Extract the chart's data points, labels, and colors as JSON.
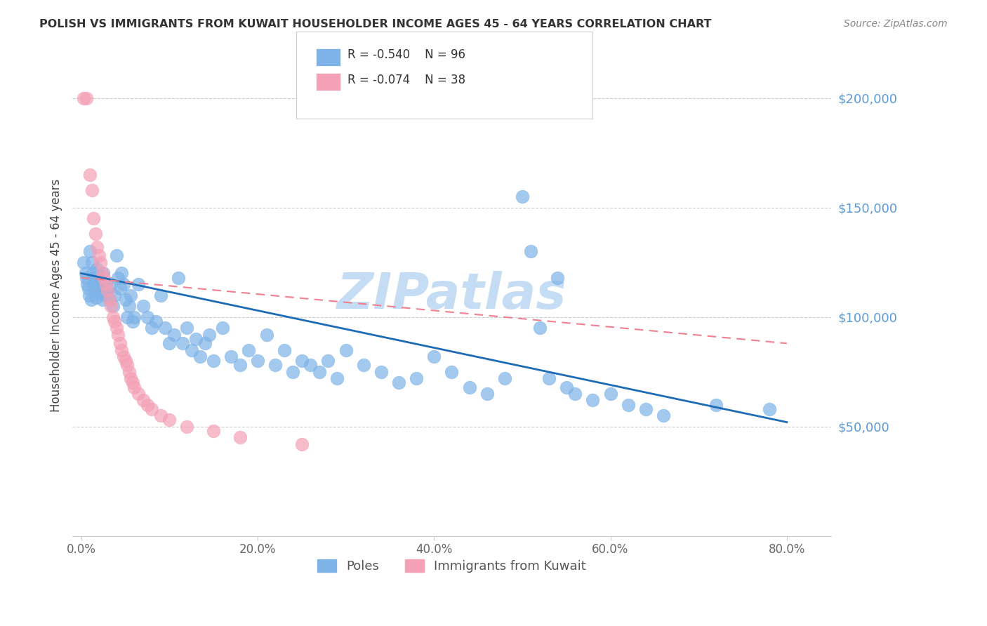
{
  "title": "POLISH VS IMMIGRANTS FROM KUWAIT HOUSEHOLDER INCOME AGES 45 - 64 YEARS CORRELATION CHART",
  "source": "Source: ZipAtlas.com",
  "ylabel": "Householder Income Ages 45 - 64 years",
  "xlabel_ticks": [
    "0.0%",
    "20.0%",
    "40.0%",
    "60.0%",
    "80.0%"
  ],
  "xlabel_vals": [
    0.0,
    0.2,
    0.4,
    0.6,
    0.8
  ],
  "ytick_labels": [
    "$50,000",
    "$100,000",
    "$150,000",
    "$200,000"
  ],
  "ytick_vals": [
    50000,
    100000,
    150000,
    200000
  ],
  "ymin": 0,
  "ymax": 220000,
  "xmin": -0.01,
  "xmax": 0.85,
  "legend_blue_r": "R = -0.540",
  "legend_blue_n": "N = 96",
  "legend_pink_r": "R = -0.074",
  "legend_pink_n": "N = 38",
  "blue_color": "#7EB3E8",
  "pink_color": "#F4A0B5",
  "blue_line_color": "#1E6BB5",
  "pink_line_color": "#F08090",
  "watermark": "ZIPatlas",
  "watermark_color": "#C5DCF5",
  "background_color": "#FFFFFF",
  "poles_label": "Poles",
  "kuwait_label": "Immigrants from Kuwait",
  "blue_scatter": [
    [
      0.003,
      125000
    ],
    [
      0.005,
      120000
    ],
    [
      0.006,
      118000
    ],
    [
      0.007,
      115000
    ],
    [
      0.008,
      113000
    ],
    [
      0.009,
      110000
    ],
    [
      0.01,
      130000
    ],
    [
      0.011,
      108000
    ],
    [
      0.012,
      125000
    ],
    [
      0.013,
      120000
    ],
    [
      0.014,
      115000
    ],
    [
      0.015,
      118000
    ],
    [
      0.016,
      112000
    ],
    [
      0.017,
      109000
    ],
    [
      0.018,
      122000
    ],
    [
      0.019,
      115000
    ],
    [
      0.02,
      119000
    ],
    [
      0.022,
      114000
    ],
    [
      0.023,
      111000
    ],
    [
      0.024,
      108000
    ],
    [
      0.025,
      120000
    ],
    [
      0.026,
      115000
    ],
    [
      0.027,
      110000
    ],
    [
      0.028,
      116000
    ],
    [
      0.03,
      112000
    ],
    [
      0.032,
      108000
    ],
    [
      0.034,
      115000
    ],
    [
      0.036,
      105000
    ],
    [
      0.038,
      110000
    ],
    [
      0.04,
      128000
    ],
    [
      0.042,
      118000
    ],
    [
      0.044,
      113000
    ],
    [
      0.046,
      120000
    ],
    [
      0.048,
      115000
    ],
    [
      0.05,
      108000
    ],
    [
      0.052,
      100000
    ],
    [
      0.054,
      105000
    ],
    [
      0.056,
      110000
    ],
    [
      0.058,
      98000
    ],
    [
      0.06,
      100000
    ],
    [
      0.065,
      115000
    ],
    [
      0.07,
      105000
    ],
    [
      0.075,
      100000
    ],
    [
      0.08,
      95000
    ],
    [
      0.085,
      98000
    ],
    [
      0.09,
      110000
    ],
    [
      0.095,
      95000
    ],
    [
      0.1,
      88000
    ],
    [
      0.105,
      92000
    ],
    [
      0.11,
      118000
    ],
    [
      0.115,
      88000
    ],
    [
      0.12,
      95000
    ],
    [
      0.125,
      85000
    ],
    [
      0.13,
      90000
    ],
    [
      0.135,
      82000
    ],
    [
      0.14,
      88000
    ],
    [
      0.145,
      92000
    ],
    [
      0.15,
      80000
    ],
    [
      0.16,
      95000
    ],
    [
      0.17,
      82000
    ],
    [
      0.18,
      78000
    ],
    [
      0.19,
      85000
    ],
    [
      0.2,
      80000
    ],
    [
      0.21,
      92000
    ],
    [
      0.22,
      78000
    ],
    [
      0.23,
      85000
    ],
    [
      0.24,
      75000
    ],
    [
      0.25,
      80000
    ],
    [
      0.26,
      78000
    ],
    [
      0.27,
      75000
    ],
    [
      0.28,
      80000
    ],
    [
      0.29,
      72000
    ],
    [
      0.3,
      85000
    ],
    [
      0.32,
      78000
    ],
    [
      0.34,
      75000
    ],
    [
      0.36,
      70000
    ],
    [
      0.38,
      72000
    ],
    [
      0.4,
      82000
    ],
    [
      0.42,
      75000
    ],
    [
      0.44,
      68000
    ],
    [
      0.46,
      65000
    ],
    [
      0.48,
      72000
    ],
    [
      0.5,
      155000
    ],
    [
      0.51,
      130000
    ],
    [
      0.52,
      95000
    ],
    [
      0.53,
      72000
    ],
    [
      0.54,
      118000
    ],
    [
      0.55,
      68000
    ],
    [
      0.56,
      65000
    ],
    [
      0.58,
      62000
    ],
    [
      0.6,
      65000
    ],
    [
      0.62,
      60000
    ],
    [
      0.64,
      58000
    ],
    [
      0.66,
      55000
    ],
    [
      0.72,
      60000
    ],
    [
      0.78,
      58000
    ]
  ],
  "pink_scatter": [
    [
      0.003,
      200000
    ],
    [
      0.006,
      200000
    ],
    [
      0.01,
      165000
    ],
    [
      0.012,
      158000
    ],
    [
      0.014,
      145000
    ],
    [
      0.016,
      138000
    ],
    [
      0.018,
      132000
    ],
    [
      0.02,
      128000
    ],
    [
      0.022,
      125000
    ],
    [
      0.024,
      120000
    ],
    [
      0.026,
      118000
    ],
    [
      0.028,
      115000
    ],
    [
      0.03,
      112000
    ],
    [
      0.032,
      108000
    ],
    [
      0.034,
      105000
    ],
    [
      0.036,
      100000
    ],
    [
      0.038,
      98000
    ],
    [
      0.04,
      95000
    ],
    [
      0.042,
      92000
    ],
    [
      0.044,
      88000
    ],
    [
      0.046,
      85000
    ],
    [
      0.048,
      82000
    ],
    [
      0.05,
      80000
    ],
    [
      0.052,
      78000
    ],
    [
      0.054,
      75000
    ],
    [
      0.056,
      72000
    ],
    [
      0.058,
      70000
    ],
    [
      0.06,
      68000
    ],
    [
      0.065,
      65000
    ],
    [
      0.07,
      62000
    ],
    [
      0.075,
      60000
    ],
    [
      0.08,
      58000
    ],
    [
      0.09,
      55000
    ],
    [
      0.1,
      53000
    ],
    [
      0.12,
      50000
    ],
    [
      0.15,
      48000
    ],
    [
      0.18,
      45000
    ],
    [
      0.25,
      42000
    ]
  ],
  "blue_line_x": [
    0.0,
    0.8
  ],
  "blue_line_y": [
    120000,
    52000
  ],
  "pink_line_x": [
    0.0,
    0.8
  ],
  "pink_line_y": [
    118000,
    88000
  ]
}
